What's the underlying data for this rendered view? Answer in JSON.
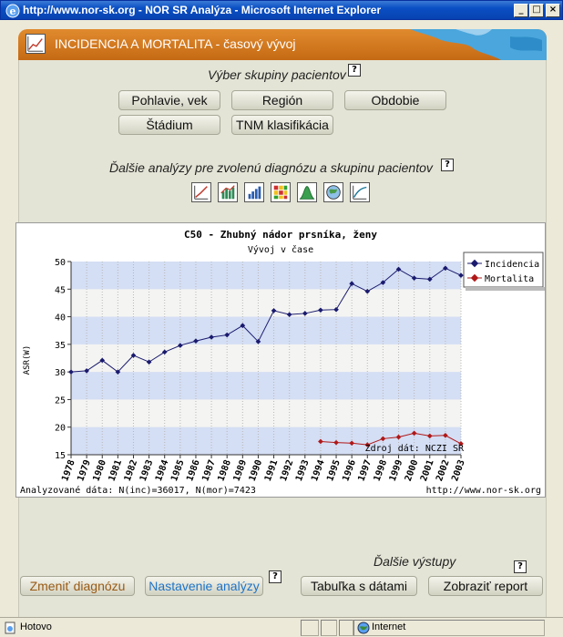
{
  "window": {
    "title": "http://www.nor-sk.org - NOR SR Analýza - Microsoft Internet Explorer",
    "minimize": "_",
    "maximize": "□",
    "close": "×"
  },
  "banner": {
    "title": "INCIDENCIA A MORTALITA - časový vývoj",
    "icon": "line-chart-icon"
  },
  "patient_group": {
    "label": "Výber skupiny pacientov",
    "help": "?",
    "buttons": [
      "Pohlavie, vek",
      "Región",
      "Obdobie",
      "Štádium",
      "TNM klasifikácia"
    ]
  },
  "further_analyses": {
    "label": "Ďalšie analýzy pre zvolenú diagnózu a skupinu pacientov",
    "help": "?",
    "icons": [
      "line-trend-icon",
      "area-bars-icon",
      "bar-chart-icon",
      "heatmap-icon",
      "distribution-icon",
      "map-globe-icon",
      "curve-icon"
    ]
  },
  "chart_data": {
    "type": "line",
    "title": "C50 - Zhubný nádor prsníka, ženy",
    "subtitle": "Vývoj v čase",
    "ylabel": "ASR(W)",
    "ylim": [
      15,
      50
    ],
    "yticks": [
      15,
      20,
      25,
      30,
      35,
      40,
      45,
      50
    ],
    "x": [
      1978,
      1979,
      1980,
      1981,
      1982,
      1983,
      1984,
      1985,
      1986,
      1987,
      1988,
      1989,
      1990,
      1991,
      1992,
      1993,
      1994,
      1995,
      1996,
      1997,
      1998,
      1999,
      2000,
      2001,
      2002,
      2003
    ],
    "series": [
      {
        "name": "Incidencia",
        "color": "#1a1a6e",
        "values": [
          30.0,
          30.2,
          32.1,
          30.0,
          33.0,
          31.8,
          33.6,
          34.8,
          35.6,
          36.3,
          36.7,
          38.4,
          35.5,
          41.1,
          40.4,
          40.6,
          41.2,
          41.3,
          46.0,
          44.6,
          46.2,
          48.6,
          47.0,
          46.8,
          48.8,
          47.5
        ]
      },
      {
        "name": "Mortalita",
        "color": "#b01818",
        "values": [
          null,
          null,
          null,
          null,
          null,
          null,
          null,
          null,
          null,
          null,
          null,
          null,
          null,
          null,
          null,
          null,
          17.4,
          17.2,
          17.1,
          16.8,
          17.9,
          18.2,
          18.9,
          18.4,
          18.5,
          17.0
        ]
      }
    ],
    "legend_position": "top-right",
    "bands": "alternating",
    "source_note": "Zdroj dát: NCZI SR",
    "footer_left": "Analyzované dáta: N(inc)=36017, N(mor)=7423",
    "footer_right": "http://www.nor-sk.org"
  },
  "outputs": {
    "label": "Ďalšie výstupy",
    "help": "?"
  },
  "bottom_buttons": {
    "change_diagnosis": "Zmeniť diagnózu",
    "analysis_settings": "Nastavenie analýzy",
    "help": "?",
    "data_table": "Tabuľka s dátami",
    "show_report": "Zobraziť report"
  },
  "statusbar": {
    "status": "Hotovo",
    "zone": "Internet"
  },
  "colors": {
    "titlebar": "#0842b0",
    "banner": "#d17a22",
    "change_diag_text": "#9a5a14",
    "settings_text": "#1f74c8",
    "band": "#d4def4"
  }
}
